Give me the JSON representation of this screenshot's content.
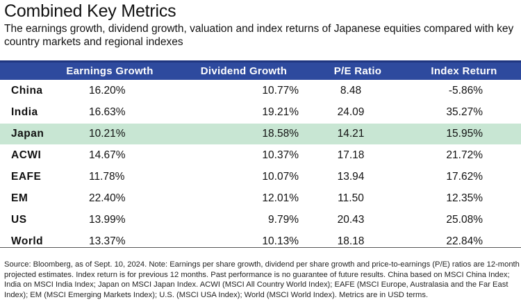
{
  "title": "Combined Key Metrics",
  "subtitle": "The earnings growth, dividend growth, valuation and index returns of Japanese equities compared with key country markets and regional indexes",
  "table": {
    "headers": [
      "Earnings Growth",
      "Dividend Growth",
      "P/E Ratio",
      "Index Return"
    ],
    "rows": [
      {
        "name": "China",
        "earnings": "16.20%",
        "dividend": "10.77%",
        "pe": "8.48",
        "ret": "-5.86%"
      },
      {
        "name": "India",
        "earnings": "16.63%",
        "dividend": "19.21%",
        "pe": "24.09",
        "ret": "35.27%"
      },
      {
        "name": "Japan",
        "earnings": "10.21%",
        "dividend": "18.58%",
        "pe": "14.21",
        "ret": "15.95%"
      },
      {
        "name": "ACWI",
        "earnings": "14.67%",
        "dividend": "10.37%",
        "pe": "17.18",
        "ret": "21.72%"
      },
      {
        "name": "EAFE",
        "earnings": "11.78%",
        "dividend": "10.07%",
        "pe": "13.94",
        "ret": "17.62%"
      },
      {
        "name": "EM",
        "earnings": "22.40%",
        "dividend": "12.01%",
        "pe": "11.50",
        "ret": "12.35%"
      },
      {
        "name": "US",
        "earnings": "13.99%",
        "dividend": "9.79%",
        "pe": "20.43",
        "ret": "25.08%"
      },
      {
        "name": "World",
        "earnings": "13.37%",
        "dividend": "10.13%",
        "pe": "18.18",
        "ret": "22.84%"
      }
    ],
    "highlight_color": "#c8e6d3",
    "header_color": "#2e4a9e"
  },
  "source": "Source: Bloomberg, as of Sept. 10, 2024. Note: Earnings per share growth, dividend per share growth and price-to-earnings (P/E) ratios are 12-month projected estimates. Index return is for previous 12 months. Past performance is no guarantee of future results. China based on MSCI China Index; India on MSCI India Index; Japan on MSCI Japan Index. ACWI (MSCI All Country World Index); EAFE (MSCI Europe, Australasia and the Far East Index); EM (MSCI Emerging Markets Index); U.S. (MSCI USA Index); World (MSCI World Index). Metrics are in USD terms."
}
